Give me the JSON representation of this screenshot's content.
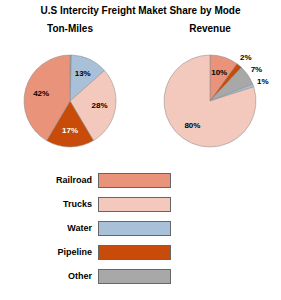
{
  "title": "U.S Intercity Freight Maket Share by Mode",
  "legend": "bottom",
  "categories": [
    "Railroad",
    "Trucks",
    "Water",
    "Pipeline",
    "Other"
  ],
  "colors": [
    "#e8937a",
    "#f2c9bc",
    "#a8c0d8",
    "#c84b0a",
    "#a8a8a8"
  ],
  "chart_data": [
    {
      "type": "pie",
      "title": "Ton-Miles",
      "categories": [
        "Other",
        "Water",
        "Trucks",
        "Pipeline",
        "Railroad"
      ],
      "values": [
        0.5,
        13,
        28,
        17,
        41.5
      ],
      "colors": [
        "#a8a8a8",
        "#a8c0d8",
        "#f2c9bc",
        "#c84b0a",
        "#e8937a"
      ],
      "value_labels": [
        null,
        "13%",
        "28%",
        "17%",
        "42%"
      ],
      "data_labels": true
    },
    {
      "type": "pie",
      "title": "Revenue",
      "categories": [
        "Railroad",
        "Pipeline",
        "Other",
        "Water",
        "Trucks"
      ],
      "values": [
        10,
        2,
        7,
        1,
        80
      ],
      "colors": [
        "#e8937a",
        "#c84b0a",
        "#a8a8a8",
        "#a8c0d8",
        "#f2c9bc"
      ],
      "value_labels": [
        "10%",
        "2%",
        "7%",
        "1%",
        "80%"
      ],
      "data_labels": true
    }
  ]
}
